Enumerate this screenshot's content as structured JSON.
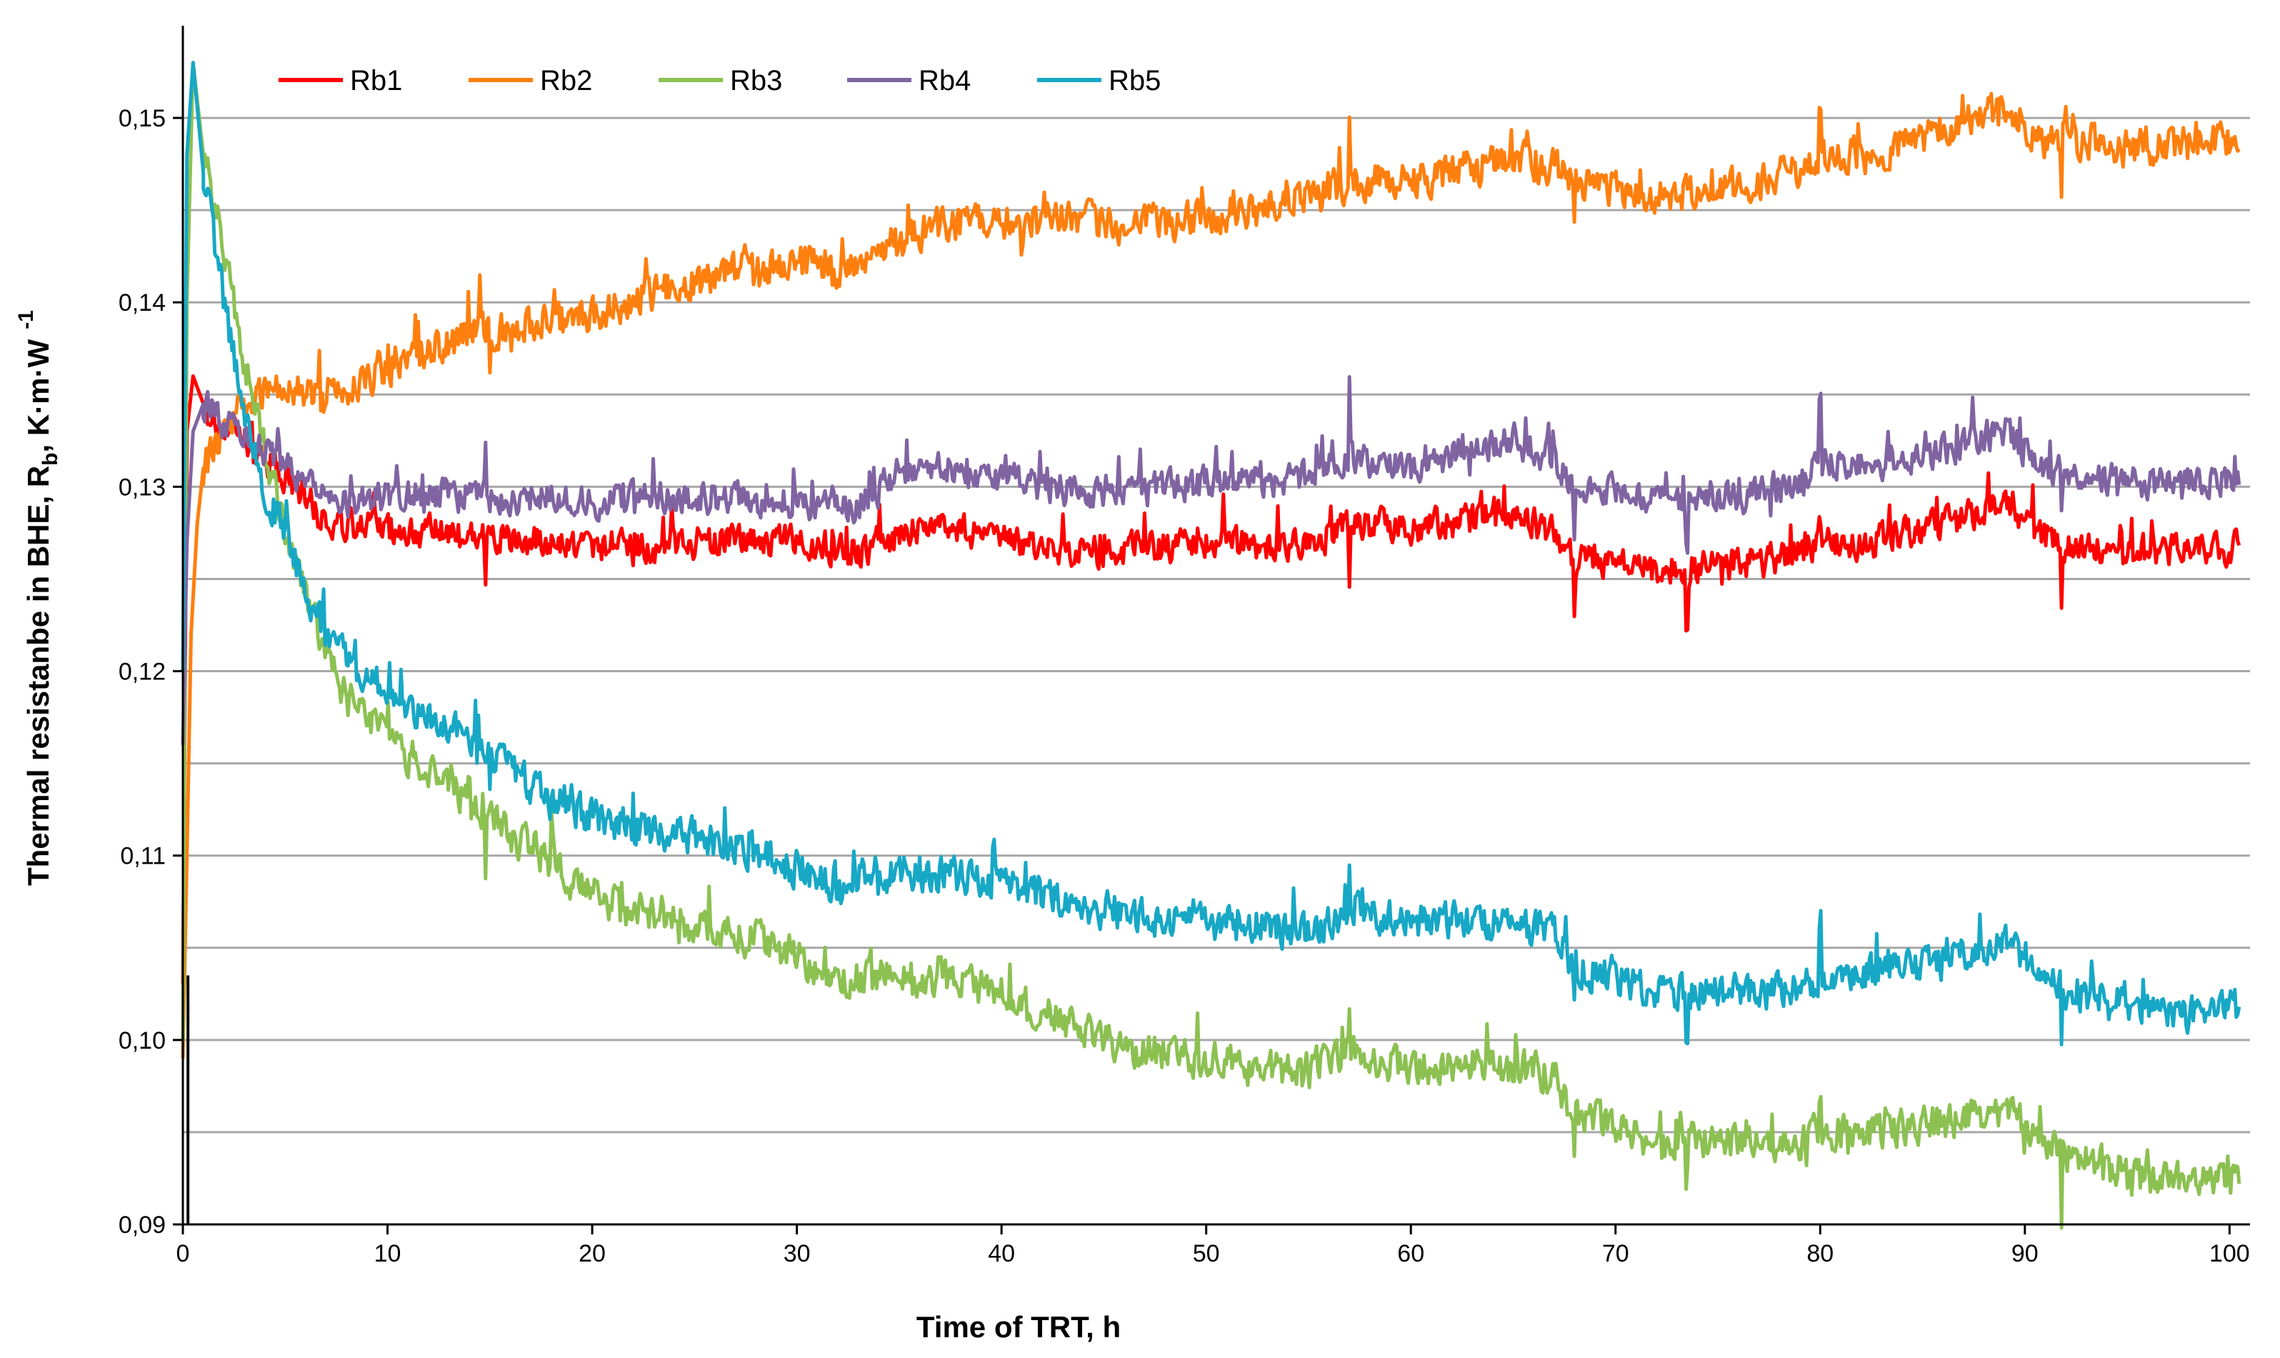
{
  "chart_data": {
    "type": "line",
    "xlabel": "Time of TRT, h",
    "ylabel_parts": {
      "main": "Thermal resistanbe in BHE, R",
      "subscript": "b",
      "unit": ", K·m·W",
      "superscript": "-1"
    },
    "xlim": [
      0,
      101
    ],
    "ylim": [
      0.09,
      0.155
    ],
    "x_ticks": [
      0,
      10,
      20,
      30,
      40,
      50,
      60,
      70,
      80,
      90,
      100
    ],
    "x_tick_labels": [
      "0",
      "10",
      "20",
      "30",
      "40",
      "50",
      "60",
      "70",
      "80",
      "90",
      "100"
    ],
    "y_ticks": [
      0.09,
      0.1,
      0.11,
      0.12,
      0.13,
      0.14,
      0.15
    ],
    "y_tick_labels": [
      "0,09",
      "0,10",
      "0,11",
      "0,12",
      "0,13",
      "0,14",
      "0,15"
    ],
    "y_gridlines": [
      0.095,
      0.1,
      0.105,
      0.11,
      0.115,
      0.12,
      0.125,
      0.13,
      0.135,
      0.14,
      0.145,
      0.15
    ],
    "legend_position": "top-left",
    "series": [
      {
        "name": "Rb1",
        "color": "#ff0000",
        "noise": 0.0008,
        "spikes": [
          [
            14.8,
            -0.002
          ],
          [
            22,
            -0.0015
          ],
          [
            57,
            -0.0025
          ],
          [
            68,
            -0.0025
          ],
          [
            73.5,
            -0.0025
          ],
          [
            80,
            0.0018
          ],
          [
            91.8,
            -0.0035
          ]
        ],
        "points": [
          [
            0,
            0.103
          ],
          [
            0.2,
            0.133
          ],
          [
            0.5,
            0.136
          ],
          [
            1,
            0.1345
          ],
          [
            2,
            0.133
          ],
          [
            3,
            0.1325
          ],
          [
            4,
            0.1315
          ],
          [
            5,
            0.1305
          ],
          [
            6,
            0.1295
          ],
          [
            7,
            0.128
          ],
          [
            8,
            0.1278
          ],
          [
            10,
            0.1277
          ],
          [
            15,
            0.1272
          ],
          [
            20,
            0.1268
          ],
          [
            25,
            0.127
          ],
          [
            30,
            0.127
          ],
          [
            33,
            0.1265
          ],
          [
            35,
            0.1275
          ],
          [
            37,
            0.128
          ],
          [
            40,
            0.127
          ],
          [
            45,
            0.1265
          ],
          [
            50,
            0.127
          ],
          [
            55,
            0.1268
          ],
          [
            57,
            0.128
          ],
          [
            60,
            0.1278
          ],
          [
            63,
            0.1282
          ],
          [
            65,
            0.1285
          ],
          [
            67,
            0.1275
          ],
          [
            68,
            0.126
          ],
          [
            70,
            0.1258
          ],
          [
            72,
            0.1255
          ],
          [
            75,
            0.1257
          ],
          [
            77,
            0.1258
          ],
          [
            79,
            0.1265
          ],
          [
            80,
            0.127
          ],
          [
            82,
            0.1268
          ],
          [
            84,
            0.1275
          ],
          [
            86,
            0.128
          ],
          [
            88,
            0.1285
          ],
          [
            89,
            0.129
          ],
          [
            90,
            0.1282
          ],
          [
            91,
            0.1272
          ],
          [
            92,
            0.1268
          ],
          [
            95,
            0.1265
          ],
          [
            98,
            0.1265
          ],
          [
            100.5,
            0.1268
          ]
        ]
      },
      {
        "name": "Rb2",
        "color": "#ff7f0e",
        "noise": 0.0009,
        "spikes": [
          [
            14.5,
            0.0025
          ],
          [
            15,
            -0.002
          ],
          [
            41,
            -0.002
          ],
          [
            57,
            0.0035
          ],
          [
            68,
            -0.002
          ],
          [
            80,
            0.003
          ],
          [
            91.8,
            -0.0035
          ]
        ],
        "points": [
          [
            0,
            0.099
          ],
          [
            0.2,
            0.11
          ],
          [
            0.4,
            0.122
          ],
          [
            0.7,
            0.128
          ],
          [
            1,
            0.131
          ],
          [
            2,
            0.133
          ],
          [
            3,
            0.1345
          ],
          [
            5,
            0.1355
          ],
          [
            7,
            0.1345
          ],
          [
            9,
            0.136
          ],
          [
            12,
            0.1375
          ],
          [
            15,
            0.1385
          ],
          [
            18,
            0.139
          ],
          [
            20,
            0.1392
          ],
          [
            22,
            0.1402
          ],
          [
            25,
            0.1412
          ],
          [
            28,
            0.1418
          ],
          [
            30,
            0.1422
          ],
          [
            32,
            0.1415
          ],
          [
            35,
            0.1432
          ],
          [
            37,
            0.1442
          ],
          [
            40,
            0.1442
          ],
          [
            43,
            0.1445
          ],
          [
            46,
            0.144
          ],
          [
            50,
            0.1448
          ],
          [
            53,
            0.145
          ],
          [
            55,
            0.1455
          ],
          [
            57,
            0.1465
          ],
          [
            60,
            0.1466
          ],
          [
            63,
            0.1472
          ],
          [
            65,
            0.1477
          ],
          [
            67,
            0.1475
          ],
          [
            68,
            0.1465
          ],
          [
            70,
            0.146
          ],
          [
            72,
            0.1458
          ],
          [
            75,
            0.1462
          ],
          [
            77,
            0.1465
          ],
          [
            79,
            0.1472
          ],
          [
            80,
            0.148
          ],
          [
            83,
            0.148
          ],
          [
            86,
            0.1493
          ],
          [
            88,
            0.1505
          ],
          [
            89,
            0.1503
          ],
          [
            90,
            0.1498
          ],
          [
            91,
            0.1485
          ],
          [
            93,
            0.1488
          ],
          [
            95,
            0.1485
          ],
          [
            98,
            0.1485
          ],
          [
            100.5,
            0.1488
          ]
        ]
      },
      {
        "name": "Rb3",
        "color": "#8cc152",
        "noise": 0.0009,
        "spikes": [
          [
            14.8,
            -0.003
          ],
          [
            18,
            0.0025
          ],
          [
            57,
            0.002
          ],
          [
            68,
            -0.0025
          ],
          [
            73.5,
            -0.002
          ],
          [
            80,
            0.0025
          ],
          [
            91.8,
            -0.004
          ]
        ],
        "points": [
          [
            0,
            0.1
          ],
          [
            0.2,
            0.14
          ],
          [
            0.5,
            0.153
          ],
          [
            1,
            0.148
          ],
          [
            2,
            0.143
          ],
          [
            3,
            0.137
          ],
          [
            4,
            0.132
          ],
          [
            5,
            0.128
          ],
          [
            6,
            0.124
          ],
          [
            7,
            0.121
          ],
          [
            8,
            0.1185
          ],
          [
            10,
            0.1165
          ],
          [
            12,
            0.1145
          ],
          [
            15,
            0.112
          ],
          [
            18,
            0.1095
          ],
          [
            20,
            0.1078
          ],
          [
            22,
            0.107
          ],
          [
            25,
            0.1062
          ],
          [
            28,
            0.1055
          ],
          [
            30,
            0.1045
          ],
          [
            32,
            0.1032
          ],
          [
            35,
            0.1035
          ],
          [
            37,
            0.1033
          ],
          [
            40,
            0.1025
          ],
          [
            43,
            0.101
          ],
          [
            46,
            0.0995
          ],
          [
            50,
            0.099
          ],
          [
            53,
            0.0985
          ],
          [
            55,
            0.0983
          ],
          [
            57,
            0.0995
          ],
          [
            60,
            0.0985
          ],
          [
            63,
            0.0987
          ],
          [
            65,
            0.0985
          ],
          [
            67,
            0.098
          ],
          [
            68,
            0.0958
          ],
          [
            70,
            0.0955
          ],
          [
            72,
            0.0945
          ],
          [
            75,
            0.0945
          ],
          [
            77,
            0.0943
          ],
          [
            79,
            0.0945
          ],
          [
            80,
            0.0952
          ],
          [
            82,
            0.0948
          ],
          [
            84,
            0.0953
          ],
          [
            86,
            0.0955
          ],
          [
            88,
            0.096
          ],
          [
            89,
            0.0962
          ],
          [
            90,
            0.0955
          ],
          [
            91,
            0.0942
          ],
          [
            93,
            0.0935
          ],
          [
            95,
            0.0925
          ],
          [
            98,
            0.0925
          ],
          [
            100.5,
            0.0925
          ]
        ]
      },
      {
        "name": "Rb4",
        "color": "#8064a2",
        "noise": 0.0008,
        "spikes": [
          [
            14.8,
            0.002
          ],
          [
            22,
            0.0015
          ],
          [
            57,
            0.004
          ],
          [
            68,
            -0.0022
          ],
          [
            73.5,
            -0.002
          ],
          [
            80,
            0.004
          ],
          [
            91.8,
            -0.003
          ]
        ],
        "points": [
          [
            0,
            0.116
          ],
          [
            0.2,
            0.127
          ],
          [
            0.5,
            0.133
          ],
          [
            1,
            0.1345
          ],
          [
            2,
            0.1335
          ],
          [
            3,
            0.1325
          ],
          [
            4,
            0.132
          ],
          [
            5,
            0.131
          ],
          [
            6,
            0.13
          ],
          [
            7,
            0.1292
          ],
          [
            10,
            0.1295
          ],
          [
            15,
            0.1295
          ],
          [
            20,
            0.1292
          ],
          [
            25,
            0.1295
          ],
          [
            30,
            0.1292
          ],
          [
            33,
            0.129
          ],
          [
            35,
            0.1308
          ],
          [
            37,
            0.131
          ],
          [
            40,
            0.1305
          ],
          [
            45,
            0.1295
          ],
          [
            50,
            0.1302
          ],
          [
            55,
            0.1305
          ],
          [
            57,
            0.1315
          ],
          [
            60,
            0.131
          ],
          [
            63,
            0.1318
          ],
          [
            65,
            0.1325
          ],
          [
            67,
            0.1315
          ],
          [
            68,
            0.1298
          ],
          [
            70,
            0.1298
          ],
          [
            72,
            0.1292
          ],
          [
            75,
            0.1295
          ],
          [
            77,
            0.1297
          ],
          [
            79,
            0.13
          ],
          [
            80,
            0.1312
          ],
          [
            82,
            0.1312
          ],
          [
            84,
            0.1315
          ],
          [
            86,
            0.132
          ],
          [
            88,
            0.1328
          ],
          [
            89,
            0.133
          ],
          [
            90,
            0.132
          ],
          [
            91,
            0.131
          ],
          [
            92,
            0.1308
          ],
          [
            95,
            0.1302
          ],
          [
            98,
            0.1302
          ],
          [
            100.5,
            0.1305
          ]
        ]
      },
      {
        "name": "Rb5",
        "color": "#17a8c6",
        "noise": 0.0009,
        "spikes": [
          [
            14.3,
            0.003
          ],
          [
            15,
            -0.0025
          ],
          [
            22,
            0.002
          ],
          [
            57,
            0.003
          ],
          [
            68,
            -0.0022
          ],
          [
            73.5,
            -0.002
          ],
          [
            80,
            0.0035
          ],
          [
            91.8,
            -0.0035
          ]
        ],
        "points": [
          [
            0,
            0.12
          ],
          [
            0.2,
            0.148
          ],
          [
            0.5,
            0.153
          ],
          [
            1,
            0.147
          ],
          [
            2,
            0.14
          ],
          [
            3,
            0.134
          ],
          [
            4,
            0.13
          ],
          [
            5,
            0.1275
          ],
          [
            6,
            0.1245
          ],
          [
            7,
            0.122
          ],
          [
            8,
            0.1205
          ],
          [
            10,
            0.119
          ],
          [
            12,
            0.1175
          ],
          [
            15,
            0.1155
          ],
          [
            18,
            0.113
          ],
          [
            20,
            0.112
          ],
          [
            22,
            0.1115
          ],
          [
            25,
            0.111
          ],
          [
            28,
            0.1102
          ],
          [
            30,
            0.1093
          ],
          [
            32,
            0.1085
          ],
          [
            35,
            0.1092
          ],
          [
            37,
            0.109
          ],
          [
            40,
            0.1085
          ],
          [
            43,
            0.1075
          ],
          [
            46,
            0.1068
          ],
          [
            50,
            0.1063
          ],
          [
            53,
            0.1062
          ],
          [
            55,
            0.1058
          ],
          [
            57,
            0.107
          ],
          [
            60,
            0.1063
          ],
          [
            63,
            0.1065
          ],
          [
            65,
            0.1063
          ],
          [
            67,
            0.1058
          ],
          [
            68,
            0.1038
          ],
          [
            70,
            0.1035
          ],
          [
            72,
            0.1025
          ],
          [
            75,
            0.1025
          ],
          [
            77,
            0.1025
          ],
          [
            79,
            0.1028
          ],
          [
            80,
            0.1035
          ],
          [
            82,
            0.1035
          ],
          [
            84,
            0.104
          ],
          [
            86,
            0.1042
          ],
          [
            88,
            0.105
          ],
          [
            89,
            0.1052
          ],
          [
            90,
            0.1045
          ],
          [
            91,
            0.1032
          ],
          [
            93,
            0.1025
          ],
          [
            95,
            0.1018
          ],
          [
            98,
            0.1015
          ],
          [
            100.5,
            0.1018
          ]
        ]
      }
    ]
  }
}
